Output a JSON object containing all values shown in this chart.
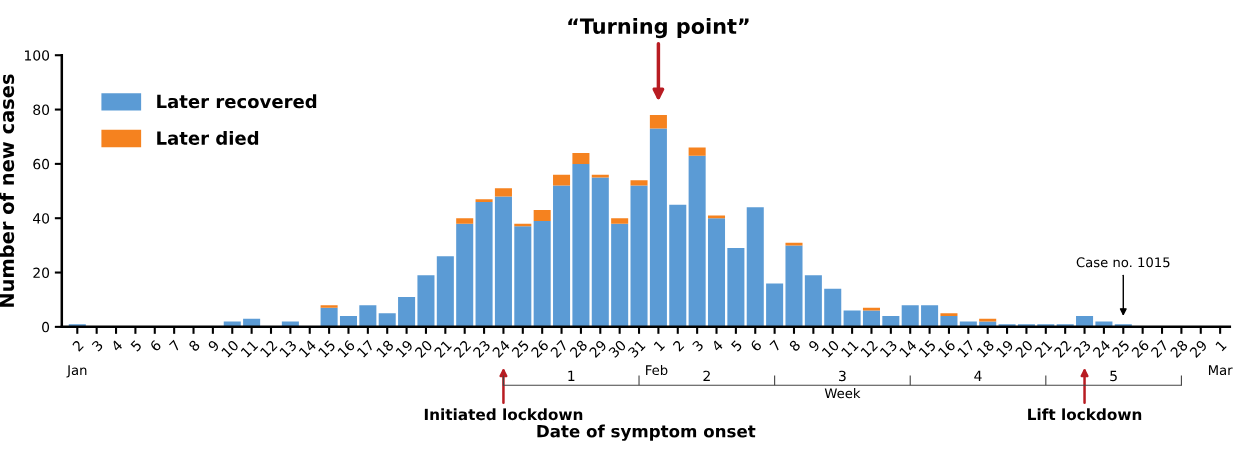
{
  "chart_data": {
    "type": "bar",
    "stacked": true,
    "xlabel": "Date of symptom onset",
    "ylabel": "Number of new cases",
    "categories": [
      "2",
      "3",
      "4",
      "5",
      "6",
      "7",
      "8",
      "9",
      "10",
      "11",
      "12",
      "13",
      "14",
      "15",
      "16",
      "17",
      "18",
      "19",
      "20",
      "21",
      "22",
      "23",
      "24",
      "25",
      "26",
      "27",
      "28",
      "29",
      "30",
      "31",
      "1",
      "2",
      "3",
      "4",
      "5",
      "6",
      "7",
      "8",
      "9",
      "10",
      "11",
      "12",
      "13",
      "14",
      "15",
      "16",
      "17",
      "18",
      "19",
      "20",
      "21",
      "22",
      "23",
      "24",
      "25",
      "26",
      "27",
      "28",
      "29",
      "1"
    ],
    "series": [
      {
        "name": "Later recovered",
        "color": "#5b9bd5",
        "values": [
          1,
          0,
          0,
          0,
          0,
          0,
          0,
          0,
          2,
          3,
          0,
          2,
          0,
          7,
          4,
          8,
          5,
          11,
          19,
          26,
          38,
          46,
          48,
          37,
          39,
          52,
          60,
          55,
          38,
          52,
          73,
          45,
          63,
          40,
          29,
          44,
          16,
          30,
          19,
          14,
          6,
          6,
          4,
          8,
          8,
          4,
          2,
          2,
          1,
          1,
          1,
          1,
          4,
          2,
          1,
          0,
          0,
          0,
          0,
          0
        ]
      },
      {
        "name": "Later died",
        "color": "#f5821f",
        "values": [
          0,
          0,
          0,
          0,
          0,
          0,
          0,
          0,
          0,
          0,
          0,
          0,
          0,
          1,
          0,
          0,
          0,
          0,
          0,
          0,
          2,
          1,
          3,
          1,
          4,
          4,
          4,
          1,
          2,
          2,
          5,
          0,
          3,
          1,
          0,
          0,
          0,
          1,
          0,
          0,
          0,
          1,
          0,
          0,
          0,
          1,
          0,
          1,
          0,
          0,
          0,
          0,
          0,
          0,
          0,
          0,
          0,
          0,
          0,
          0
        ]
      }
    ],
    "ylim": [
      0,
      100
    ],
    "yticks": [
      0,
      20,
      40,
      60,
      80,
      100
    ],
    "grid": false,
    "legend": "top left",
    "x2label": "Week",
    "x2lim": [
      -3.257,
      5.357
    ],
    "x2ticks": [
      {
        "value": 0,
        "label": null
      },
      {
        "value": 0.5,
        "label": "1"
      },
      {
        "value": 1,
        "label": null
      },
      {
        "value": 1.5,
        "label": "2"
      },
      {
        "value": 2,
        "label": null
      },
      {
        "value": 2.5,
        "label": "3"
      },
      {
        "value": 3,
        "label": null
      },
      {
        "value": 3.5,
        "label": "4"
      },
      {
        "value": 4,
        "label": null
      },
      {
        "value": 4.5,
        "label": "5"
      },
      {
        "value": 5,
        "label": null
      }
    ],
    "annotations": [
      "“Turning point”",
      "Case no. 1015",
      "Initiated lockdown",
      "Lift lockdown",
      "Jan",
      "Feb",
      "Mar"
    ]
  }
}
